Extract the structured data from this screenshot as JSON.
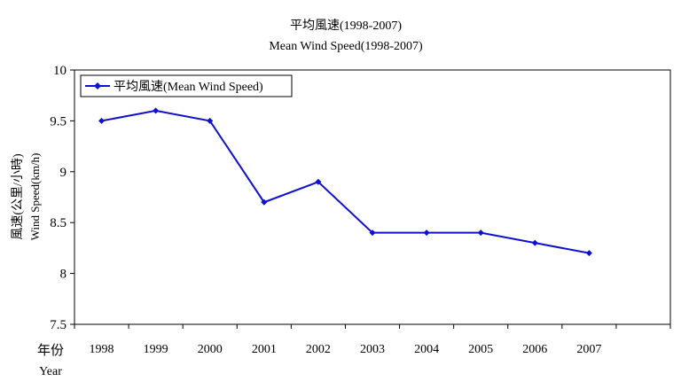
{
  "chart_data": {
    "type": "line",
    "title": "平均風速(1998-2007)",
    "subtitle": "Mean Wind Speed(1998-2007)",
    "categories": [
      "1998",
      "1999",
      "2000",
      "2001",
      "2002",
      "2003",
      "2004",
      "2005",
      "2006",
      "2007"
    ],
    "series": [
      {
        "name": "平均風速(Mean Wind Speed)",
        "values": [
          9.5,
          9.6,
          9.5,
          8.7,
          8.9,
          8.4,
          8.4,
          8.4,
          8.3,
          8.2
        ]
      }
    ],
    "y_ticks": [
      "10",
      "9.5",
      "9",
      "8.5",
      "8",
      "7.5"
    ],
    "ylim": [
      7.5,
      10
    ],
    "ylabel_zh": "風速(公里/小時)",
    "ylabel_en": "Wind Speed(km/h)",
    "xlabel_zh": "年份",
    "xlabel_en": "Year",
    "legend_position": "top-left",
    "grid": false,
    "line_color": "#1010D0"
  }
}
